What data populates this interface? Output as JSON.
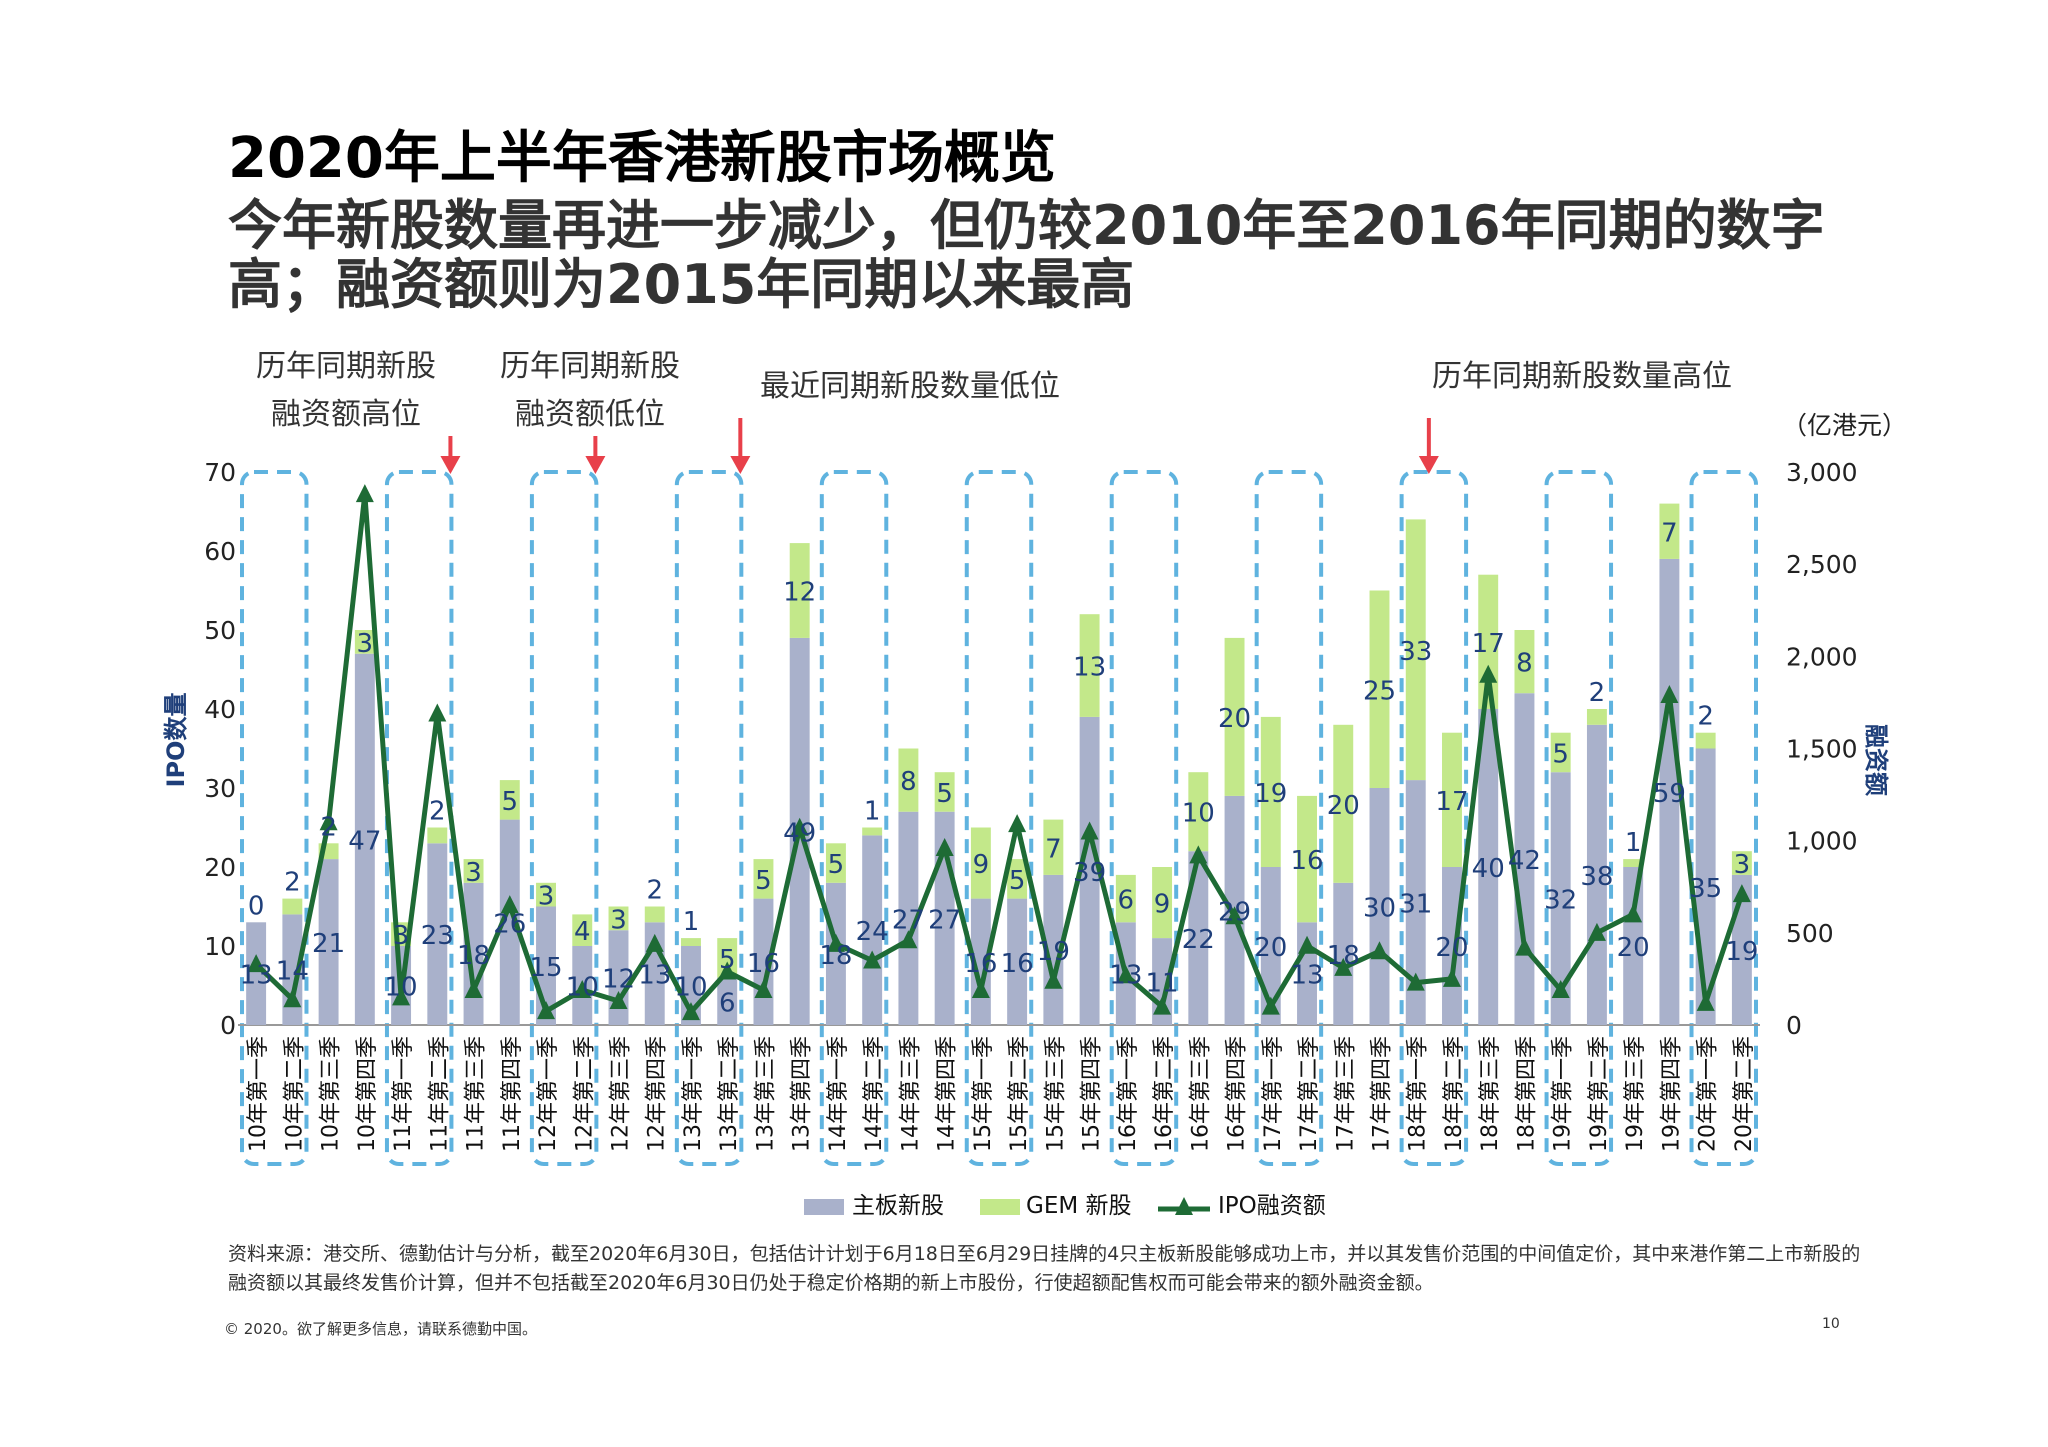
{
  "page": {
    "title": "2020年上半年香港新股市场概览",
    "subtitle": "今年新股数量再进一步减少，但仍较2010年至2016年同期的数字高；融资额则为2015年同期以来最高",
    "source": "资料来源：港交所、德勤估计与分析，截至2020年6月30日，包括估计计划于6月18日至6月29日挂牌的4只主板新股能够成功上市，并以其发售价范围的中间值定价，其中来港作第二上市新股的融资额以其最终发售价计算，但并不包括截至2020年6月30日仍处于稳定价格期的新上市股份，行使超额配售权而可能会带来的额外融资金额。",
    "copyright": "© 2020。欲了解更多信息，请联系德勤中国。",
    "page_number": "10"
  },
  "chart_data": {
    "type": "bar",
    "stacked": true,
    "categories": [
      "10年第一季",
      "10年第二季",
      "10年第三季",
      "10年第四季",
      "11年第一季",
      "11年第二季",
      "11年第三季",
      "11年第四季",
      "12年第一季",
      "12年第二季",
      "12年第三季",
      "12年第四季",
      "13年第一季",
      "13年第二季",
      "13年第三季",
      "13年第四季",
      "14年第一季",
      "14年第二季",
      "14年第三季",
      "14年第四季",
      "15年第一季",
      "15年第二季",
      "15年第三季",
      "15年第四季",
      "16年第一季",
      "16年第二季",
      "16年第三季",
      "16年第四季",
      "17年第一季",
      "17年第二季",
      "17年第三季",
      "17年第四季",
      "18年第一季",
      "18年第二季",
      "18年第三季",
      "18年第四季",
      "19年第一季",
      "19年第二季",
      "19年第三季",
      "19年第四季",
      "20年第一季",
      "20年第二季"
    ],
    "series": [
      {
        "name": "主板新股",
        "axis": "left",
        "color": "#a9b1cb",
        "values": [
          13,
          14,
          21,
          47,
          10,
          23,
          18,
          26,
          15,
          10,
          12,
          13,
          10,
          6,
          16,
          49,
          18,
          24,
          27,
          27,
          16,
          16,
          19,
          39,
          13,
          11,
          22,
          29,
          20,
          13,
          18,
          30,
          31,
          20,
          40,
          42,
          32,
          38,
          20,
          59,
          35,
          19
        ]
      },
      {
        "name": "GEM 新股",
        "axis": "left",
        "color": "#c3e88a",
        "values": [
          0,
          2,
          2,
          3,
          3,
          2,
          3,
          5,
          3,
          4,
          3,
          2,
          1,
          5,
          5,
          12,
          5,
          1,
          8,
          5,
          9,
          5,
          7,
          13,
          6,
          9,
          10,
          20,
          19,
          16,
          20,
          25,
          33,
          17,
          17,
          8,
          5,
          2,
          1,
          7,
          2,
          3
        ]
      },
      {
        "name": "IPO融资额",
        "axis": "right",
        "type": "line",
        "color": "#1e6b35",
        "values": [
          330,
          140,
          1100,
          2880,
          150,
          1690,
          190,
          650,
          75,
          190,
          130,
          440,
          70,
          290,
          190,
          1070,
          440,
          350,
          460,
          960,
          190,
          1090,
          240,
          1050,
          270,
          100,
          920,
          590,
          100,
          430,
          310,
          400,
          230,
          250,
          1900,
          420,
          190,
          500,
          600,
          1790,
          120,
          710
        ]
      }
    ],
    "y_left": {
      "label": "IPO数量",
      "ticks": [
        "0",
        "10",
        "20",
        "30",
        "40",
        "50",
        "60",
        "70"
      ],
      "ylim": [
        0,
        70
      ]
    },
    "y_right": {
      "label": "融资额",
      "unit": "（亿港元）",
      "ticks": [
        "0",
        "500",
        "1,000",
        "1,500",
        "2,000",
        "2,500",
        "3,000"
      ],
      "ylim": [
        0,
        3000
      ]
    },
    "legend": [
      "主板新股",
      "GEM 新股",
      "IPO融资额"
    ],
    "annotations": [
      {
        "text": [
          "历年同期新股",
          "融资额高位"
        ],
        "arrow_at": "11年第二季"
      },
      {
        "text": [
          "历年同期新股",
          "融资额低位"
        ],
        "arrow_at": "12年第二季"
      },
      {
        "text": [
          "最近同期新股数量低位"
        ],
        "arrow_at": "13年第二季"
      },
      {
        "text": [
          "历年同期新股数量高位"
        ],
        "arrow_at": "18年第一季"
      }
    ],
    "highlight_groups": [
      [
        0,
        1
      ],
      [
        4,
        5
      ],
      [
        8,
        9
      ],
      [
        12,
        13
      ],
      [
        16,
        17
      ],
      [
        20,
        21
      ],
      [
        24,
        25
      ],
      [
        28,
        29
      ],
      [
        32,
        33
      ],
      [
        36,
        37
      ],
      [
        40,
        41
      ]
    ]
  }
}
